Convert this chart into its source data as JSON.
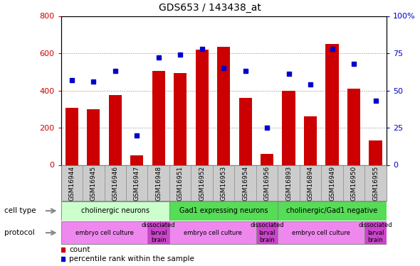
{
  "title": "GDS653 / 143438_at",
  "samples": [
    "GSM16944",
    "GSM16945",
    "GSM16946",
    "GSM16947",
    "GSM16948",
    "GSM16951",
    "GSM16952",
    "GSM16953",
    "GSM16954",
    "GSM16956",
    "GSM16893",
    "GSM16894",
    "GSM16949",
    "GSM16950",
    "GSM16955"
  ],
  "counts": [
    305,
    300,
    375,
    50,
    505,
    495,
    620,
    635,
    360,
    60,
    400,
    260,
    650,
    410,
    130
  ],
  "percentiles": [
    57,
    56,
    63,
    20,
    72,
    74,
    78,
    65,
    63,
    25,
    61,
    54,
    78,
    68,
    43
  ],
  "bar_color": "#cc0000",
  "dot_color": "#0000cc",
  "ylim_left": [
    0,
    800
  ],
  "ylim_right": [
    0,
    100
  ],
  "yticks_left": [
    0,
    200,
    400,
    600,
    800
  ],
  "yticks_right": [
    0,
    25,
    50,
    75,
    100
  ],
  "yticklabels_right": [
    "0",
    "25",
    "50",
    "75",
    "100%"
  ],
  "cell_type_groups": [
    {
      "label": "cholinergic neurons",
      "start": 0,
      "end": 5,
      "color": "#ccffcc"
    },
    {
      "label": "Gad1 expressing neurons",
      "start": 5,
      "end": 10,
      "color": "#55dd55"
    },
    {
      "label": "cholinergic/Gad1 negative",
      "start": 10,
      "end": 15,
      "color": "#55dd55"
    }
  ],
  "protocol_groups": [
    {
      "label": "embryo cell culture",
      "start": 0,
      "end": 4,
      "color": "#ee88ee"
    },
    {
      "label": "dissociated\nlarval\nbrain",
      "start": 4,
      "end": 5,
      "color": "#cc44cc"
    },
    {
      "label": "embryo cell culture",
      "start": 5,
      "end": 9,
      "color": "#ee88ee"
    },
    {
      "label": "dissociated\nlarval\nbrain",
      "start": 9,
      "end": 10,
      "color": "#cc44cc"
    },
    {
      "label": "embryo cell culture",
      "start": 10,
      "end": 14,
      "color": "#ee88ee"
    },
    {
      "label": "dissociated\nlarval\nbrain",
      "start": 14,
      "end": 15,
      "color": "#cc44cc"
    }
  ],
  "legend_count_label": "count",
  "legend_pct_label": "percentile rank within the sample",
  "cell_type_label": "cell type",
  "protocol_label": "protocol",
  "xtick_bg": "#cccccc",
  "grid_color": "#888888",
  "label_arrow_color": "#888888"
}
